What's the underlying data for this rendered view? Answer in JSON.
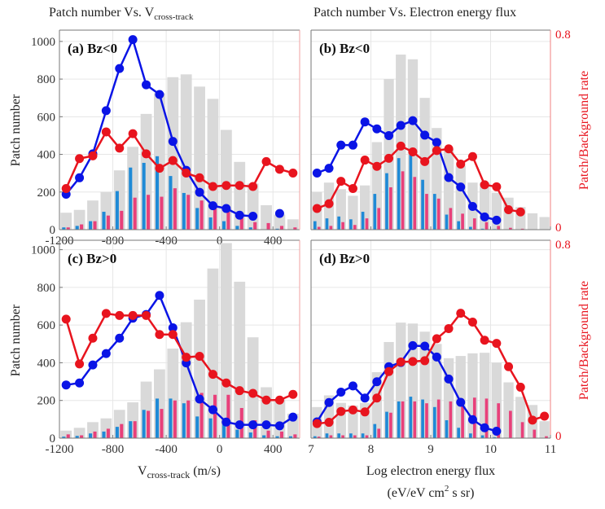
{
  "titles": {
    "left_main": "Patch number Vs. V",
    "left_sub": "cross-track",
    "right": "Patch number Vs. Electron energy flux"
  },
  "ylabel_left": "Patch number",
  "ylabel_right": "Patch/Background rate",
  "xlabel_left": {
    "main": "V",
    "sub": "cross-track",
    "unit": " (m/s)"
  },
  "xlabel_right": {
    "line1": "Log electron energy flux",
    "line2a": "(eV/eV cm",
    "line2sup": "2",
    "line2b": " s sr)"
  },
  "colors": {
    "background_bars": "#d9d9d9",
    "blue_bars": "#1f8ad6",
    "pink_bars": "#e8407a",
    "blue_line": "#0a14e6",
    "red_line": "#e8141e",
    "right_axis": "#e8141e"
  },
  "chart_data": [
    {
      "type": "bar+line",
      "panel_label": "(a) Bz<0",
      "xlim": [
        -1200,
        600
      ],
      "xticks": [
        "-1200",
        "-800",
        "-400",
        "0",
        "400"
      ],
      "xtick_values": [
        -1200,
        -800,
        -400,
        0,
        400
      ],
      "x": [
        -1150,
        -1050,
        -950,
        -850,
        -750,
        -650,
        -550,
        -450,
        -350,
        -250,
        -150,
        -50,
        50,
        150,
        250,
        350,
        450,
        550
      ],
      "ylim_left": [
        0,
        1060
      ],
      "yticks_left": [
        "0",
        "200",
        "400",
        "600",
        "800",
        "1000"
      ],
      "ylim_right": [
        0,
        0.8
      ],
      "yticks_right": [
        "0",
        "0.8"
      ],
      "grid": true,
      "background": [
        90,
        105,
        155,
        200,
        315,
        440,
        615,
        725,
        810,
        825,
        760,
        695,
        530,
        360,
        245,
        130,
        80,
        55
      ],
      "blue_bars": [
        12,
        20,
        45,
        95,
        205,
        330,
        355,
        390,
        285,
        195,
        115,
        65,
        45,
        20,
        12,
        0,
        5,
        0
      ],
      "pink_bars": [
        12,
        28,
        45,
        75,
        100,
        170,
        185,
        175,
        220,
        185,
        155,
        120,
        95,
        65,
        40,
        35,
        20,
        12
      ],
      "blue_rate": [
        0.142,
        0.208,
        0.304,
        0.477,
        0.646,
        0.762,
        0.581,
        0.542,
        0.354,
        0.238,
        0.15,
        0.096,
        0.085,
        0.058,
        0.054,
        null,
        0.065,
        null
      ],
      "red_rate": [
        0.165,
        0.285,
        0.296,
        0.392,
        0.327,
        0.385,
        0.304,
        0.246,
        0.277,
        0.227,
        0.208,
        0.173,
        0.177,
        0.177,
        0.173,
        0.273,
        0.242,
        0.227
      ]
    },
    {
      "type": "bar+line",
      "panel_label": "(b) Bz<0",
      "xlim": [
        7,
        11
      ],
      "xticks": [],
      "xtick_values": [
        7,
        8,
        9,
        10,
        11
      ],
      "x": [
        7.1,
        7.3,
        7.5,
        7.7,
        7.9,
        8.1,
        8.3,
        8.5,
        8.7,
        8.9,
        9.1,
        9.3,
        9.5,
        9.7,
        9.9,
        10.1,
        10.3,
        10.5,
        10.7,
        10.9
      ],
      "ylim_left": [
        0,
        1060
      ],
      "yticks_left": [],
      "ylim_right": [
        0,
        0.8
      ],
      "yticks_right": [
        "0",
        "0.8"
      ],
      "grid": true,
      "background": [
        200,
        250,
        215,
        180,
        235,
        465,
        800,
        930,
        905,
        700,
        540,
        430,
        340,
        250,
        250,
        195,
        170,
        120,
        87,
        67
      ],
      "blue_bars": [
        45,
        60,
        70,
        55,
        95,
        190,
        300,
        380,
        400,
        265,
        190,
        80,
        45,
        15,
        5,
        3,
        0,
        0,
        0,
        0
      ],
      "pink_bars": [
        15,
        20,
        40,
        25,
        60,
        115,
        225,
        310,
        280,
        190,
        165,
        115,
        85,
        60,
        40,
        20,
        10,
        5,
        0,
        0
      ],
      "blue_rate": [
        0.227,
        0.246,
        0.339,
        0.339,
        0.432,
        0.404,
        0.377,
        0.418,
        0.437,
        0.379,
        0.35,
        0.209,
        0.171,
        0.093,
        0.051,
        0.038,
        null,
        null,
        null,
        null
      ],
      "red_rate": [
        0.085,
        0.104,
        0.194,
        0.165,
        0.279,
        0.254,
        0.286,
        0.335,
        0.312,
        0.273,
        0.317,
        0.324,
        0.263,
        0.293,
        0.18,
        0.172,
        0.08,
        0.071,
        null,
        null
      ]
    },
    {
      "type": "bar+line",
      "panel_label": "(c) Bz>0",
      "xlim": [
        -1200,
        600
      ],
      "xticks": [
        "-1200",
        "-800",
        "-400",
        "0",
        "400"
      ],
      "xtick_values": [
        -1200,
        -800,
        -400,
        0,
        400
      ],
      "x": [
        -1150,
        -1050,
        -950,
        -850,
        -750,
        -650,
        -550,
        -450,
        -350,
        -250,
        -150,
        -50,
        50,
        150,
        250,
        350,
        450,
        550
      ],
      "ylim_left": [
        0,
        1050
      ],
      "yticks_left": [
        "0",
        "200",
        "400",
        "600",
        "800",
        "1000"
      ],
      "ylim_right": [
        0,
        0.8
      ],
      "yticks_right": [
        "0",
        "0.8"
      ],
      "grid": true,
      "background": [
        40,
        55,
        85,
        105,
        150,
        190,
        300,
        365,
        475,
        615,
        735,
        900,
        1035,
        830,
        535,
        270,
        205,
        130
      ],
      "blue_bars": [
        8,
        12,
        25,
        35,
        60,
        90,
        150,
        210,
        210,
        185,
        115,
        105,
        75,
        45,
        30,
        15,
        10,
        10
      ],
      "pink_bars": [
        20,
        15,
        35,
        50,
        75,
        90,
        145,
        155,
        200,
        200,
        240,
        230,
        230,
        160,
        95,
        40,
        35,
        20
      ],
      "blue_rate": [
        0.215,
        0.223,
        0.296,
        0.342,
        0.404,
        0.485,
        0.5,
        0.577,
        0.446,
        0.304,
        0.158,
        0.115,
        0.065,
        0.054,
        0.054,
        0.054,
        0.05,
        0.085
      ],
      "red_rate": [
        0.481,
        0.3,
        0.404,
        0.504,
        0.496,
        0.496,
        0.496,
        0.419,
        0.419,
        0.327,
        0.331,
        0.258,
        0.223,
        0.192,
        0.181,
        0.154,
        0.154,
        0.177
      ]
    },
    {
      "type": "bar+line",
      "panel_label": "(d) Bz>0",
      "xlim": [
        7,
        11
      ],
      "xticks": [
        "7",
        "8",
        "9",
        "10",
        "11"
      ],
      "xtick_values": [
        7,
        8,
        9,
        10,
        11
      ],
      "x": [
        7.1,
        7.3,
        7.5,
        7.7,
        7.9,
        8.1,
        8.3,
        8.5,
        8.7,
        8.9,
        9.1,
        9.3,
        9.5,
        9.7,
        9.9,
        10.1,
        10.3,
        10.5,
        10.7,
        10.9
      ],
      "ylim_left": [
        0,
        1050
      ],
      "yticks_left": [],
      "ylim_right": [
        0,
        0.8
      ],
      "yticks_right": [
        "0",
        "0.8"
      ],
      "grid": true,
      "background": [
        165,
        227,
        187,
        173,
        187,
        350,
        510,
        613,
        608,
        565,
        500,
        424,
        436,
        450,
        453,
        400,
        296,
        219,
        176,
        90
      ],
      "blue_bars": [
        10,
        25,
        25,
        25,
        25,
        75,
        140,
        195,
        220,
        205,
        165,
        95,
        55,
        25,
        15,
        5,
        0,
        0,
        0,
        0
      ],
      "pink_bars": [
        8,
        15,
        15,
        15,
        15,
        50,
        135,
        195,
        195,
        185,
        205,
        195,
        205,
        215,
        210,
        185,
        145,
        85,
        45,
        10
      ],
      "blue_rate": [
        0.066,
        0.144,
        0.186,
        0.211,
        0.162,
        0.228,
        0.289,
        0.306,
        0.374,
        0.372,
        0.328,
        0.239,
        0.145,
        0.075,
        0.042,
        0.028,
        null,
        null,
        null,
        null
      ],
      "red_rate": [
        0.059,
        0.064,
        0.108,
        0.114,
        0.106,
        0.162,
        0.269,
        0.308,
        0.31,
        0.313,
        0.402,
        0.443,
        0.505,
        0.469,
        0.396,
        0.383,
        0.289,
        0.206,
        0.073,
        0.089
      ]
    }
  ]
}
